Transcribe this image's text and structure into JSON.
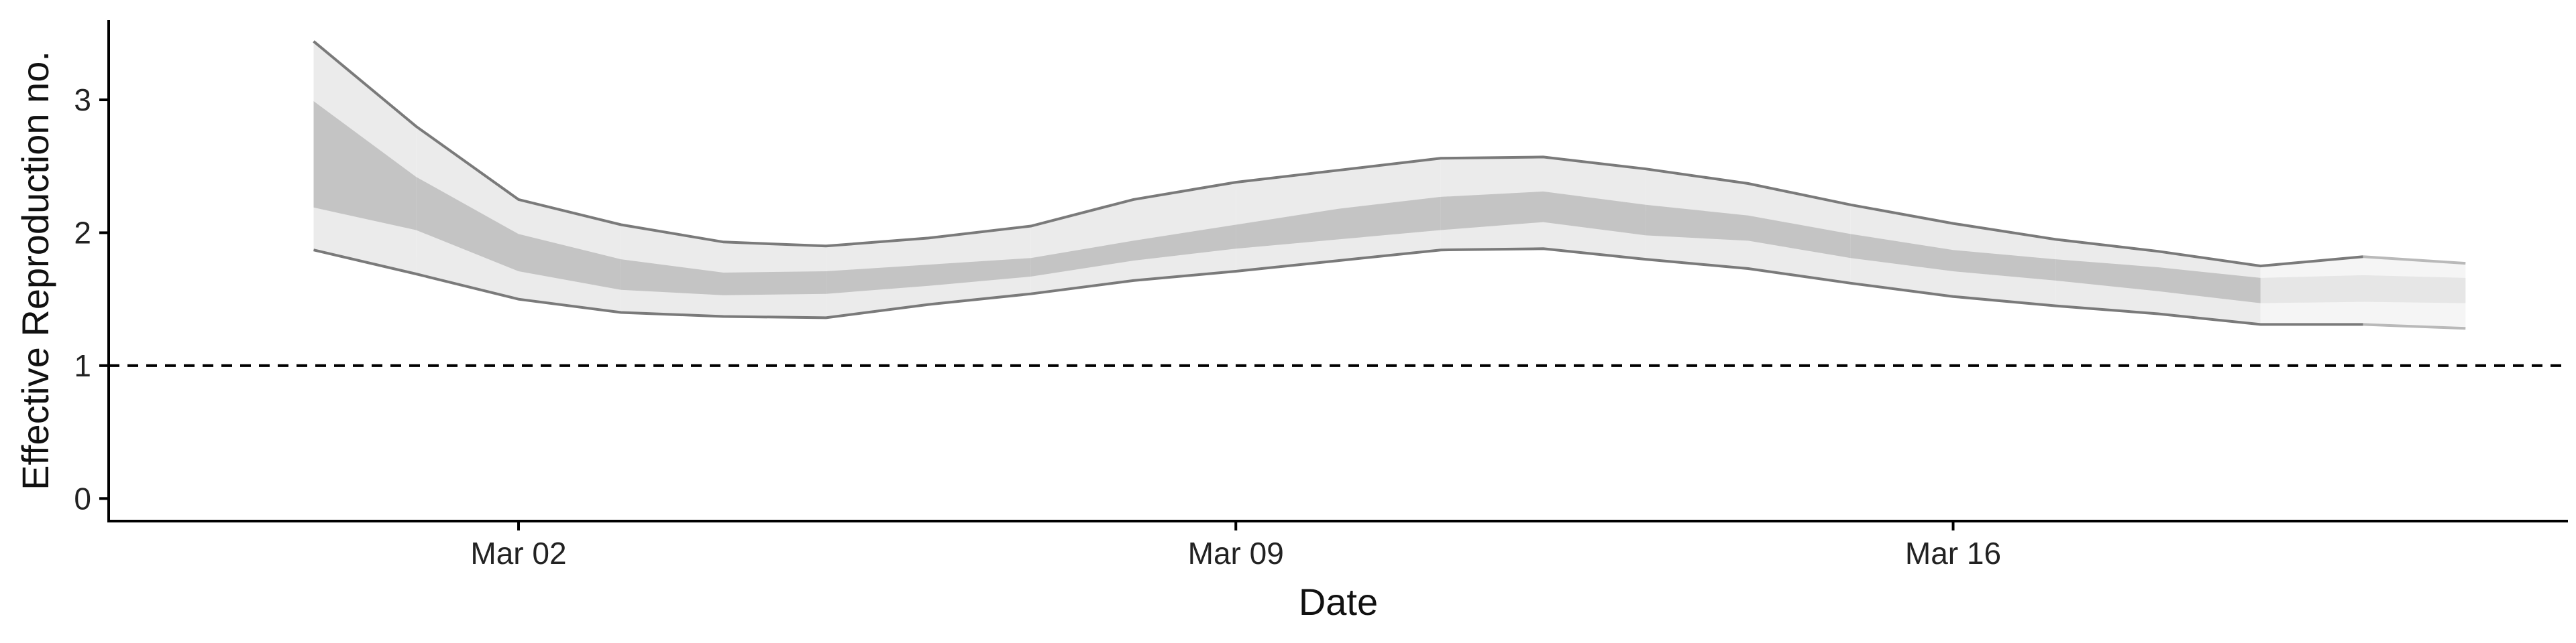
{
  "chart_data": {
    "type": "area",
    "title": "",
    "xlabel": "Date",
    "ylabel": "Effective Reproduction no.",
    "x_ticks": [
      {
        "label": "Mar 02",
        "date": "2020-03-02"
      },
      {
        "label": "Mar 09",
        "date": "2020-03-09"
      },
      {
        "label": "Mar 16",
        "date": "2020-03-16"
      }
    ],
    "y_ticks": [
      0,
      1,
      2,
      3
    ],
    "xlim": [
      "2020-02-27",
      "2020-03-22"
    ],
    "ylim": [
      -0.17,
      3.6
    ],
    "grid": false,
    "legend": "none",
    "reference_line": {
      "y": 1,
      "style": "dashed"
    },
    "series": [
      {
        "dates": [
          "2020-02-29",
          "2020-03-01",
          "2020-03-02",
          "2020-03-03",
          "2020-03-04",
          "2020-03-05",
          "2020-03-06",
          "2020-03-07",
          "2020-03-08",
          "2020-03-09",
          "2020-03-10",
          "2020-03-11",
          "2020-03-12",
          "2020-03-13",
          "2020-03-14",
          "2020-03-15",
          "2020-03-16",
          "2020-03-17",
          "2020-03-18",
          "2020-03-19",
          "2020-03-20",
          "2020-03-21"
        ],
        "lower_90": [
          1.87,
          1.69,
          1.5,
          1.4,
          1.37,
          1.36,
          1.46,
          1.54,
          1.64,
          1.71,
          1.79,
          1.87,
          1.88,
          1.8,
          1.73,
          1.62,
          1.52,
          1.45,
          1.39,
          1.31,
          1.31,
          1.28
        ],
        "upper_90": [
          3.44,
          2.8,
          2.25,
          2.06,
          1.93,
          1.9,
          1.96,
          2.05,
          2.25,
          2.38,
          2.47,
          2.56,
          2.57,
          2.48,
          2.37,
          2.21,
          2.07,
          1.95,
          1.86,
          1.75,
          1.82,
          1.77
        ],
        "lower_50": [
          2.19,
          2.02,
          1.71,
          1.57,
          1.53,
          1.54,
          1.6,
          1.67,
          1.79,
          1.88,
          1.95,
          2.02,
          2.08,
          1.98,
          1.94,
          1.81,
          1.71,
          1.64,
          1.56,
          1.47,
          1.48,
          1.47
        ],
        "upper_50": [
          2.99,
          2.42,
          1.99,
          1.8,
          1.7,
          1.71,
          1.76,
          1.81,
          1.94,
          2.06,
          2.18,
          2.27,
          2.31,
          2.21,
          2.13,
          1.99,
          1.87,
          1.8,
          1.74,
          1.66,
          1.68,
          1.66
        ],
        "estimate_type": [
          "estimate",
          "estimate",
          "estimate",
          "estimate",
          "estimate",
          "estimate",
          "estimate",
          "estimate",
          "estimate",
          "estimate",
          "estimate",
          "estimate",
          "estimate",
          "estimate",
          "estimate",
          "estimate",
          "estimate",
          "estimate",
          "estimate",
          "estimate",
          "forecast",
          "forecast"
        ]
      }
    ],
    "colors": {
      "band_90": "#ebebeb",
      "band_50": "#c4c4c4",
      "band_edge": "#7a7a7a",
      "forecast_band_90": "#f5f5f5",
      "forecast_band_50": "#e6e6e6",
      "axis": "#000000"
    }
  }
}
